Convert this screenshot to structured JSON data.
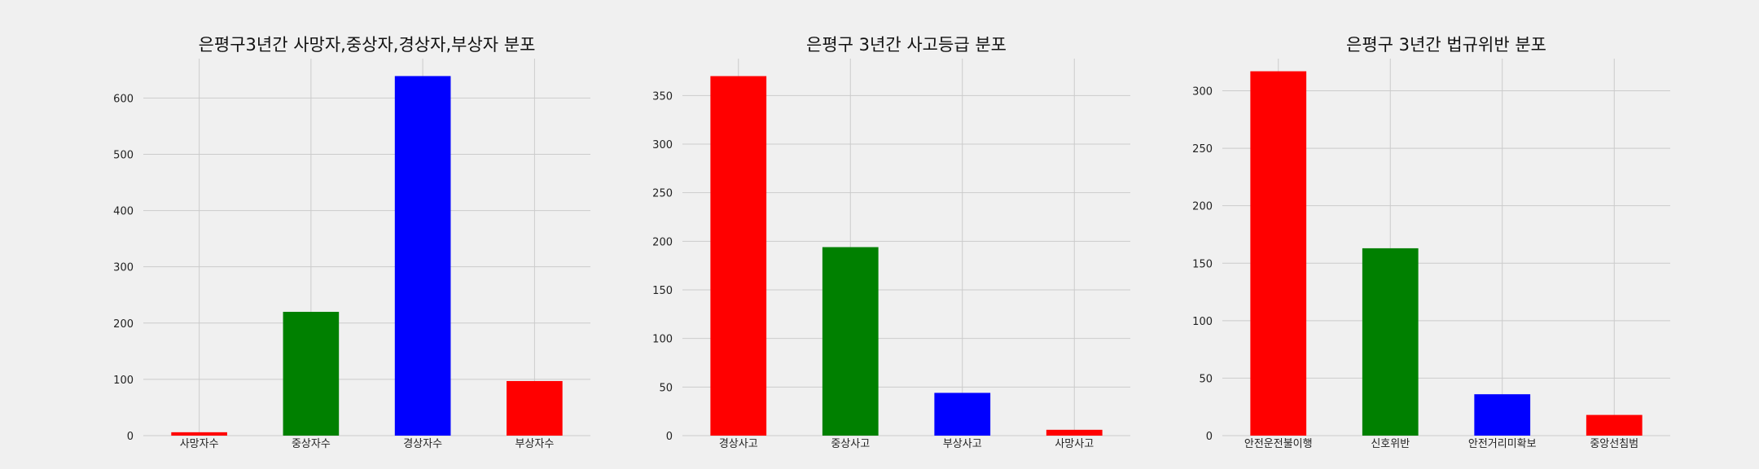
{
  "chart_data": [
    {
      "type": "bar",
      "title": "은평구3년간 사망자,중상자,경상자,부상자 분포",
      "categories": [
        "사망자수",
        "중상자수",
        "경상자수",
        "부상자수"
      ],
      "values": [
        6,
        220,
        639,
        97
      ],
      "colors": [
        "#ff0000",
        "#008000",
        "#0000ff",
        "#ff0000"
      ],
      "xlabel": "",
      "ylabel": "",
      "ylim": [
        0,
        670
      ],
      "yticks": [
        0,
        100,
        200,
        300,
        400,
        500,
        600
      ],
      "grid": true
    },
    {
      "type": "bar",
      "title": "은평구 3년간 사고등급 분포",
      "categories": [
        "경상사고",
        "중상사고",
        "부상사고",
        "사망사고"
      ],
      "values": [
        370,
        194,
        44,
        6
      ],
      "colors": [
        "#ff0000",
        "#008000",
        "#0000ff",
        "#ff0000"
      ],
      "xlabel": "",
      "ylabel": "",
      "ylim": [
        0,
        388
      ],
      "yticks": [
        0,
        50,
        100,
        150,
        200,
        250,
        300,
        350
      ],
      "grid": true
    },
    {
      "type": "bar",
      "title": "은평구 3년간 법규위반 분포",
      "categories": [
        "안전운전불이행",
        "신호위반",
        "안전거리미확보",
        "중앙선침범"
      ],
      "values": [
        317,
        163,
        36,
        18
      ],
      "colors": [
        "#ff0000",
        "#008000",
        "#0000ff",
        "#ff0000"
      ],
      "xlabel": "",
      "ylabel": "",
      "ylim": [
        0,
        328
      ],
      "yticks": [
        0,
        50,
        100,
        150,
        200,
        250,
        300
      ],
      "grid": true
    }
  ]
}
